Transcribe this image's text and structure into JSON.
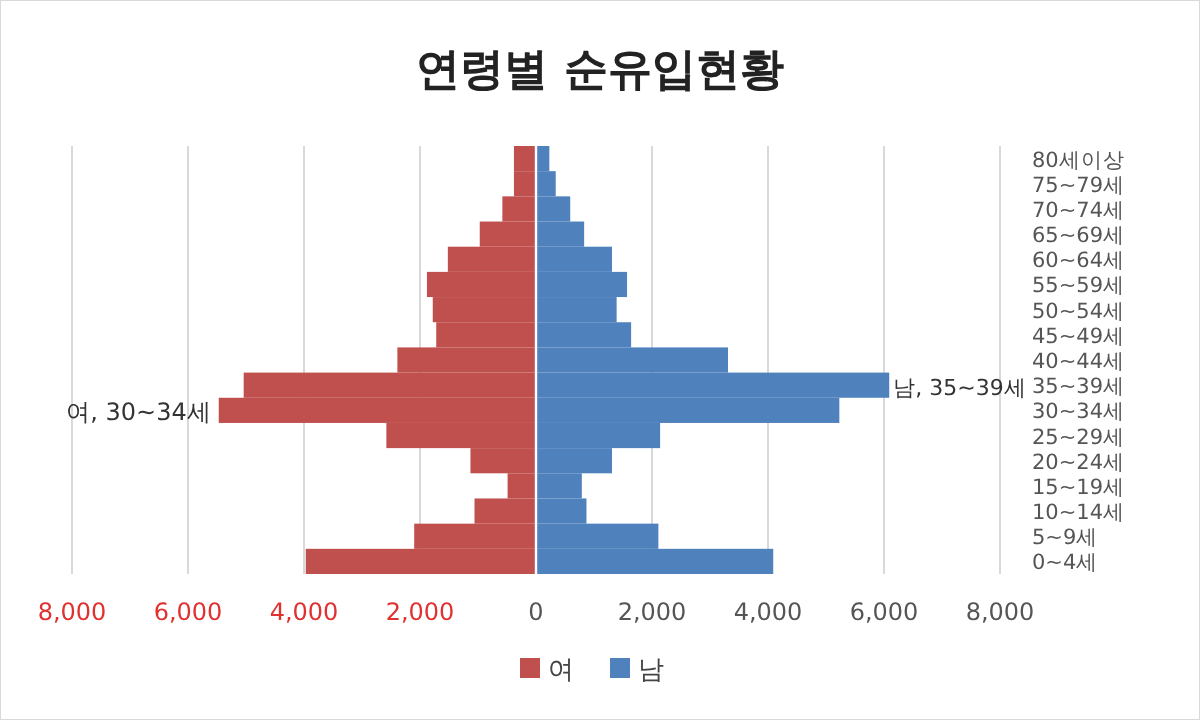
{
  "chart_data": {
    "type": "bar",
    "orientation": "horizontal",
    "stacked": true,
    "title": "연령별 순유입현황",
    "categories": [
      "80세이상",
      "75~79세",
      "70~74세",
      "65~69세",
      "60~64세",
      "55~59세",
      "50~54세",
      "45~49세",
      "40~44세",
      "35~39세",
      "30~34세",
      "25~29세",
      "20~24세",
      "15~19세",
      "10~14세",
      "5~9세",
      "0~4세"
    ],
    "series": [
      {
        "name": "여",
        "color": "#c0504d",
        "values": [
          -380,
          -380,
          -580,
          -970,
          -1520,
          -1880,
          -1780,
          -1720,
          -2390,
          -5040,
          -5470,
          -2580,
          -1130,
          -490,
          -1060,
          -2100,
          -3970
        ]
      },
      {
        "name": "남",
        "color": "#4f81bd",
        "values": [
          230,
          340,
          590,
          830,
          1310,
          1570,
          1390,
          1640,
          3310,
          6090,
          5230,
          2140,
          1310,
          790,
          870,
          2110,
          4090
        ]
      }
    ],
    "xlim": [
      -8000,
      8000
    ],
    "xticks": [
      {
        "value": -8000,
        "label": "8,000"
      },
      {
        "value": -6000,
        "label": "6,000"
      },
      {
        "value": -4000,
        "label": "4,000"
      },
      {
        "value": -2000,
        "label": "2,000"
      },
      {
        "value": 0,
        "label": "0"
      },
      {
        "value": 2000,
        "label": "2,000"
      },
      {
        "value": 4000,
        "label": "4,000"
      },
      {
        "value": 6000,
        "label": "6,000"
      },
      {
        "value": 8000,
        "label": "8,000"
      }
    ],
    "grid": "x",
    "legend": "bottom",
    "annotations": [
      {
        "text": "여, 30~34세",
        "x": -5470,
        "y": "30~34세"
      },
      {
        "text": "남, 35~39세",
        "x": 6090,
        "y": "35~39세"
      }
    ]
  }
}
